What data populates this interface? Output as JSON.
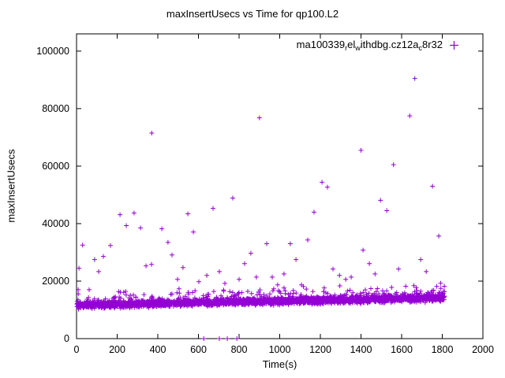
{
  "chart_data": {
    "type": "scatter",
    "title": "maxInsertUsecs vs Time for qp100.L2",
    "xlabel": "Time(s)",
    "ylabel": "maxInsertUsecs",
    "xlim": [
      0,
      2000
    ],
    "ylim": [
      0,
      106000
    ],
    "xticks": [
      0,
      200,
      400,
      600,
      800,
      1000,
      1200,
      1400,
      1600,
      1800,
      2000
    ],
    "yticks": [
      0,
      20000,
      40000,
      60000,
      80000,
      100000
    ],
    "grid": false,
    "marker": "plus",
    "color": "#9400d3",
    "axis_color": "#000000",
    "legend": {
      "position": "top-right-inside",
      "text": "ma100339relwithdbg.cz12ac8r32",
      "segments": [
        {
          "t": "ma100339"
        },
        {
          "t": "r",
          "sub": true
        },
        {
          "t": "el"
        },
        {
          "t": "w",
          "sub": true
        },
        {
          "t": "ithdbg.cz12a"
        },
        {
          "t": "c",
          "sub": true
        },
        {
          "t": "8r32"
        }
      ]
    },
    "series": [
      {
        "name": "ma100339relwithdbg.cz12ac8r32",
        "band": {
          "comment": "dense baseline band of samples",
          "count": 2600,
          "x_min": 0,
          "x_max": 1812,
          "y_base_start": 11600,
          "y_base_end": 14200,
          "noise": 1100,
          "y_min": 10200,
          "fringe_count": 280,
          "fringe_extra_max": 4800,
          "seed": 42
        },
        "outliers": [
          [
            8,
            17000
          ],
          [
            12,
            24500
          ],
          [
            30,
            32500
          ],
          [
            62,
            17000
          ],
          [
            89,
            27500
          ],
          [
            109,
            23300
          ],
          [
            132,
            28600
          ],
          [
            167,
            32400
          ],
          [
            214,
            43100
          ],
          [
            245,
            39300
          ],
          [
            283,
            43700
          ],
          [
            315,
            38500
          ],
          [
            342,
            25300
          ],
          [
            369,
            25800
          ],
          [
            370,
            71500
          ],
          [
            420,
            38200
          ],
          [
            450,
            33500
          ],
          [
            470,
            29100
          ],
          [
            497,
            20600
          ],
          [
            524,
            24700
          ],
          [
            548,
            43400
          ],
          [
            575,
            37100
          ],
          [
            602,
            19800
          ],
          [
            641,
            22000
          ],
          [
            672,
            45300
          ],
          [
            703,
            23300
          ],
          [
            730,
            19200
          ],
          [
            769,
            48900
          ],
          [
            800,
            20600
          ],
          [
            827,
            26100
          ],
          [
            858,
            29700
          ],
          [
            885,
            21400
          ],
          [
            900,
            76800
          ],
          [
            936,
            33000
          ],
          [
            963,
            21400
          ],
          [
            990,
            18700
          ],
          [
            1021,
            22500
          ],
          [
            1052,
            33000
          ],
          [
            1080,
            27500
          ],
          [
            1107,
            18700
          ],
          [
            1138,
            34300
          ],
          [
            1169,
            44000
          ],
          [
            1208,
            54400
          ],
          [
            1235,
            52700
          ],
          [
            1262,
            24200
          ],
          [
            1294,
            22000
          ],
          [
            1325,
            20600
          ],
          [
            1352,
            21400
          ],
          [
            1400,
            65500
          ],
          [
            1410,
            30800
          ],
          [
            1441,
            26100
          ],
          [
            1469,
            22500
          ],
          [
            1496,
            48100
          ],
          [
            1527,
            44500
          ],
          [
            1560,
            60500
          ],
          [
            1585,
            24200
          ],
          [
            1640,
            77500
          ],
          [
            1665,
            90500
          ],
          [
            1694,
            27500
          ],
          [
            1721,
            23300
          ],
          [
            1752,
            53000
          ],
          [
            1783,
            35700
          ],
          [
            626,
            0
          ],
          [
            703,
            0
          ],
          [
            742,
            0
          ],
          [
            789,
            0
          ]
        ]
      }
    ]
  }
}
